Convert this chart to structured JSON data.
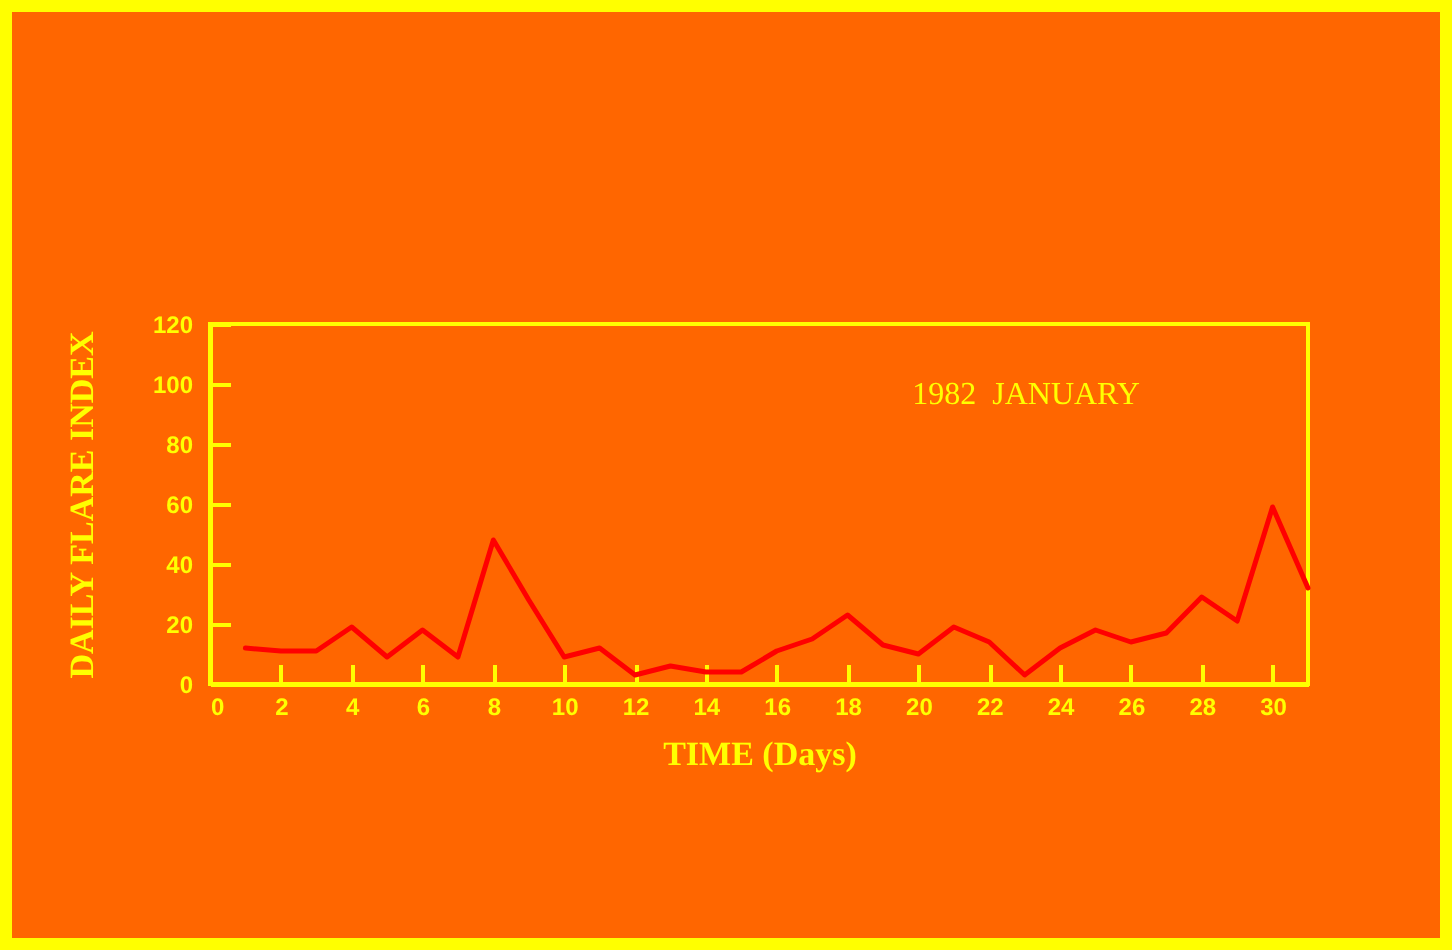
{
  "chart_data": {
    "type": "line",
    "title": "1982  JANUARY",
    "xlabel": "TIME (Days)",
    "ylabel": "DAILY FLARE INDEX",
    "x": [
      1,
      2,
      3,
      4,
      5,
      6,
      7,
      8,
      9,
      10,
      11,
      12,
      13,
      14,
      15,
      16,
      17,
      18,
      19,
      20,
      21,
      22,
      23,
      24,
      25,
      26,
      27,
      28,
      29,
      30,
      31
    ],
    "values": [
      12,
      11,
      11,
      19,
      9,
      18,
      9,
      48,
      28,
      9,
      12,
      3,
      6,
      4,
      4,
      11,
      15,
      23,
      13,
      10,
      19,
      14,
      3,
      12,
      18,
      14,
      17,
      29,
      21,
      59,
      32
    ],
    "color": "#ff0000",
    "xlim": [
      0,
      31
    ],
    "xticks": [
      0,
      2,
      4,
      6,
      8,
      10,
      12,
      14,
      16,
      18,
      20,
      22,
      24,
      26,
      28,
      30
    ],
    "ylim": [
      0,
      120
    ],
    "yticks": [
      0,
      20,
      40,
      60,
      80,
      100,
      120
    ],
    "line_style": "solid"
  }
}
